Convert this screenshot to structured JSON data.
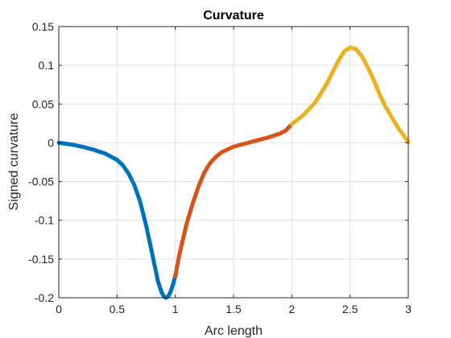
{
  "chart_data": {
    "type": "line",
    "title": "Curvature",
    "xlabel": "Arc length",
    "ylabel": "Signed curvature",
    "xlim": [
      0,
      3
    ],
    "ylim": [
      -0.2,
      0.15
    ],
    "grid": true,
    "x_ticks": [
      0,
      0.5,
      1,
      1.5,
      2,
      2.5,
      3
    ],
    "x_tick_labels": [
      "0",
      "0.5",
      "1",
      "1.5",
      "2",
      "2.5",
      "3"
    ],
    "y_ticks": [
      -0.2,
      -0.15,
      -0.1,
      -0.05,
      0,
      0.05,
      0.1,
      0.15
    ],
    "y_tick_labels": [
      "-0.2",
      "-0.15",
      "-0.1",
      "-0.05",
      "0",
      "0.05",
      "0.1",
      "0.15"
    ],
    "series": [
      {
        "color": "#0072BD",
        "x": [
          0,
          0.1,
          0.2,
          0.3,
          0.4,
          0.5,
          0.55,
          0.6,
          0.65,
          0.7,
          0.75,
          0.8,
          0.85,
          0.88,
          0.9,
          0.92,
          0.94,
          0.96,
          0.98,
          1.0
        ],
        "y": [
          0,
          -0.002,
          -0.005,
          -0.009,
          -0.014,
          -0.022,
          -0.029,
          -0.04,
          -0.055,
          -0.077,
          -0.107,
          -0.142,
          -0.178,
          -0.192,
          -0.198,
          -0.2,
          -0.198,
          -0.192,
          -0.183,
          -0.172
        ]
      },
      {
        "color": "#D95319",
        "x": [
          1.0,
          1.03,
          1.06,
          1.1,
          1.15,
          1.2,
          1.25,
          1.3,
          1.35,
          1.4,
          1.5,
          1.6,
          1.7,
          1.8,
          1.9,
          1.95,
          2.0
        ],
        "y": [
          -0.172,
          -0.148,
          -0.128,
          -0.103,
          -0.078,
          -0.056,
          -0.038,
          -0.026,
          -0.018,
          -0.012,
          -0.005,
          -0.001,
          0.003,
          0.007,
          0.012,
          0.016,
          0.024
        ]
      },
      {
        "color": "#EDB120",
        "x": [
          2.0,
          2.1,
          2.2,
          2.3,
          2.35,
          2.4,
          2.45,
          2.5,
          2.55,
          2.6,
          2.65,
          2.7,
          2.75,
          2.8,
          2.9,
          3.0
        ],
        "y": [
          0.024,
          0.036,
          0.052,
          0.076,
          0.091,
          0.106,
          0.118,
          0.123,
          0.121,
          0.112,
          0.098,
          0.082,
          0.064,
          0.048,
          0.022,
          0.001
        ]
      }
    ]
  }
}
